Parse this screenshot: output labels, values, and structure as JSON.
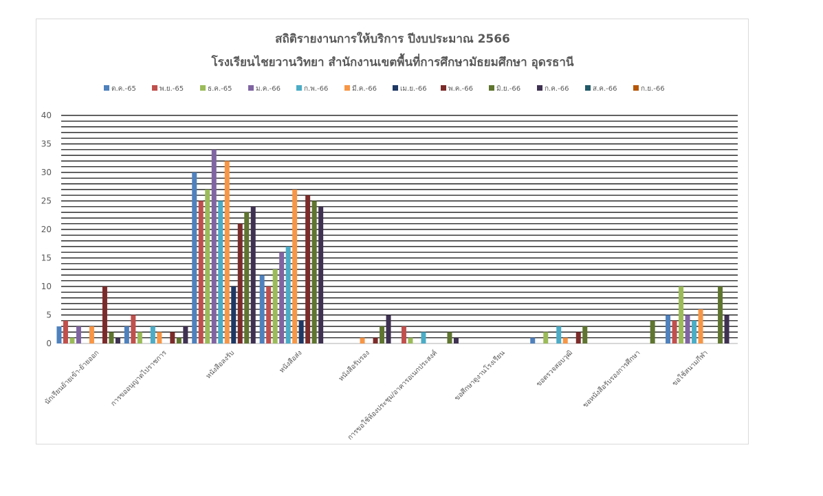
{
  "chart_data": {
    "type": "bar",
    "title_line1": "สถิติรายงานการให้บริการ ปีงบประมาณ 2566",
    "title_line2": "โรงเรียนไชยวานวิทยา สำนักงานเขตพื้นที่การศึกษามัธยมศึกษา อุดรธานี",
    "xlabel": "",
    "ylabel": "",
    "ylim": [
      0,
      40
    ],
    "yticks": [
      "0",
      "5",
      "10",
      "15",
      "20",
      "25",
      "30",
      "35",
      "40"
    ],
    "grid": true,
    "legend_position": "top",
    "categories": [
      "นักเรียนย้ายเข้า-ย้ายออก",
      "การขออนุญาตไปราชการ",
      "หนังสือลงรับ",
      "หนังสือส่ง",
      "หนังสือรับรอง",
      "การขอใช้ห้องประชุม/อาคารอเนกประสงค์",
      "ขอศึกษาดูงานโรงเรียน",
      "ขอตรวจสอบวุฒิ",
      "ขอหนังสือรับรองการศึกษา",
      "ขอใช้สนามกีฬา"
    ],
    "series": [
      {
        "name": "ต.ค.-65",
        "color": "#4f81bd",
        "values": [
          3,
          3,
          30,
          12,
          0,
          0,
          0,
          1,
          0,
          5
        ]
      },
      {
        "name": "พ.ย.-65",
        "color": "#c0504d",
        "values": [
          4,
          5,
          25,
          10,
          0,
          3,
          0,
          0,
          0,
          4
        ]
      },
      {
        "name": "ธ.ค.-65",
        "color": "#9bbb59",
        "values": [
          1,
          2,
          27,
          13,
          0,
          1,
          0,
          2,
          0,
          10
        ]
      },
      {
        "name": "ม.ค.-66",
        "color": "#8064a2",
        "values": [
          3,
          0,
          34,
          16,
          0,
          0,
          0,
          0,
          0,
          5
        ]
      },
      {
        "name": "ก.พ.-66",
        "color": "#4bacc6",
        "values": [
          0,
          3,
          25,
          17,
          0,
          2,
          0,
          3,
          0,
          4
        ]
      },
      {
        "name": "มี.ค.-66",
        "color": "#f79646",
        "values": [
          3,
          2,
          32,
          27,
          1,
          0,
          0,
          1,
          0,
          6
        ]
      },
      {
        "name": "เม.ย.-66",
        "color": "#1f3864",
        "values": [
          0,
          0,
          10,
          4,
          0,
          0,
          0,
          0,
          0,
          0
        ]
      },
      {
        "name": "พ.ค.-66",
        "color": "#7b2c2a",
        "values": [
          10,
          2,
          21,
          26,
          1,
          0,
          0,
          2,
          0,
          0
        ]
      },
      {
        "name": "มิ.ย.-66",
        "color": "#5f7530",
        "values": [
          2,
          1,
          23,
          25,
          3,
          2,
          0,
          3,
          4,
          10
        ]
      },
      {
        "name": "ก.ค.-66",
        "color": "#3f3151",
        "values": [
          1,
          3,
          24,
          24,
          5,
          1,
          0,
          0,
          0,
          5
        ]
      },
      {
        "name": "ส.ค.-66",
        "color": "#215968",
        "values": [
          0,
          0,
          0,
          0,
          0,
          0,
          0,
          0,
          0,
          0
        ]
      },
      {
        "name": "ก.ย.-66",
        "color": "#b65708",
        "values": [
          0,
          0,
          0,
          0,
          0,
          0,
          0,
          0,
          0,
          0
        ]
      }
    ]
  }
}
